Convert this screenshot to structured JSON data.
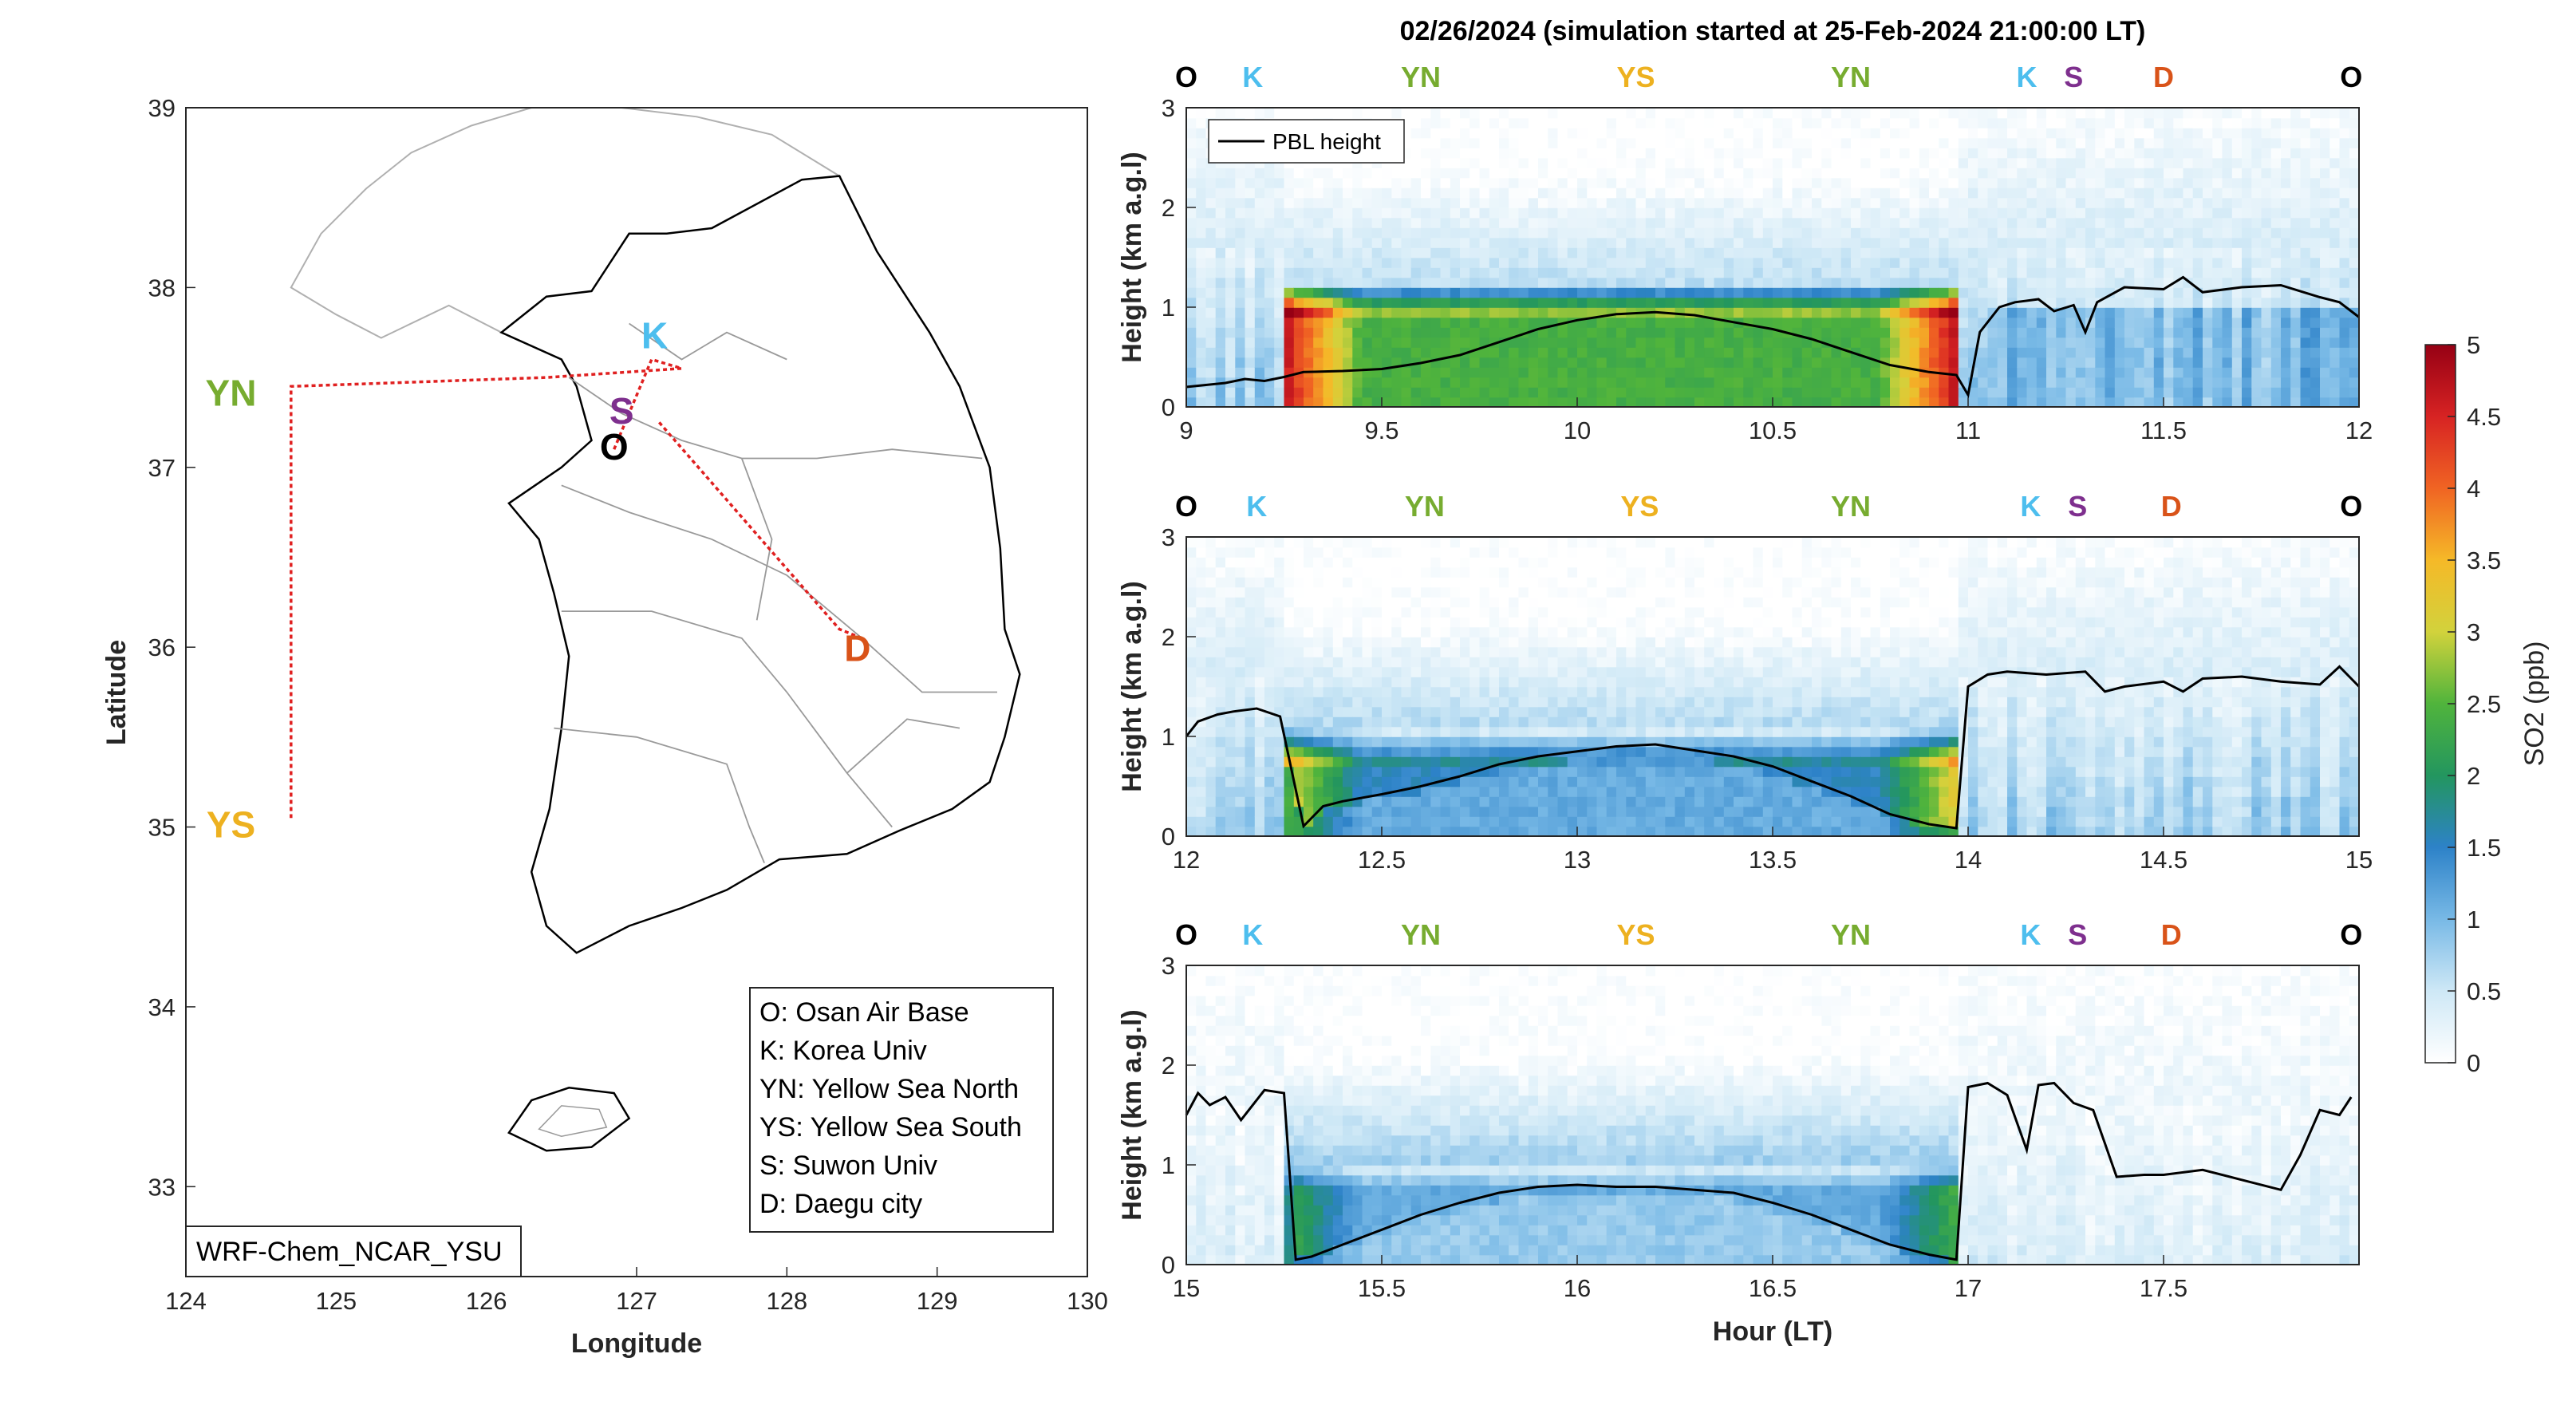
{
  "title": "02/26/2024 (simulation started at 25-Feb-2024 21:00:00 LT)",
  "map": {
    "xlabel": "Longitude",
    "ylabel": "Latitude",
    "xlim": [
      124,
      130
    ],
    "ylim": [
      32.5,
      39
    ],
    "xticks": [
      "124",
      "125",
      "126",
      "127",
      "128",
      "129",
      "130"
    ],
    "yticks": [
      "33",
      "34",
      "35",
      "36",
      "37",
      "38",
      "39"
    ],
    "model_label": "WRF-Chem_NCAR_YSU",
    "site_labels": [
      {
        "code": "YN",
        "color": "#77AC30",
        "lon": 124.3,
        "lat": 37.4
      },
      {
        "code": "YS",
        "color": "#EDB120",
        "lon": 124.3,
        "lat": 35.0
      },
      {
        "code": "K",
        "color": "#4DBEEE",
        "lon": 127.12,
        "lat": 37.72
      },
      {
        "code": "S",
        "color": "#7E2F8E",
        "lon": 126.9,
        "lat": 37.3
      },
      {
        "code": "O",
        "color": "#000000",
        "lon": 126.85,
        "lat": 37.1
      },
      {
        "code": "D",
        "color": "#D95319",
        "lon": 128.47,
        "lat": 35.98
      }
    ],
    "legend": [
      "O: Osan Air Base",
      "K: Korea Univ",
      "YN: Yellow Sea North",
      "YS: Yellow Sea South",
      "S: Suwon Univ",
      "D: Daegu city"
    ]
  },
  "chart_data": [
    {
      "type": "heatmap",
      "title": "02/26/2024 (simulation started at 25-Feb-2024 21:00:00 LT)",
      "ylabel": "Height (km a.g.l)",
      "xlabel": "",
      "xlim": [
        9,
        12
      ],
      "ylim": [
        0,
        3
      ],
      "xticks": [
        "9",
        "9.5",
        "10",
        "10.5",
        "11",
        "11.5",
        "12"
      ],
      "yticks": [
        "0",
        "1",
        "2",
        "3"
      ],
      "flight_segments": [
        {
          "label": "O",
          "color": "#000000",
          "hour": 9.0
        },
        {
          "label": "K",
          "color": "#4DBEEE",
          "hour": 9.17
        },
        {
          "label": "YN",
          "color": "#77AC30",
          "hour": 9.6
        },
        {
          "label": "YS",
          "color": "#EDB120",
          "hour": 10.15
        },
        {
          "label": "YN",
          "color": "#77AC30",
          "hour": 10.7
        },
        {
          "label": "K",
          "color": "#4DBEEE",
          "hour": 11.15
        },
        {
          "label": "S",
          "color": "#7E2F8E",
          "hour": 11.27
        },
        {
          "label": "D",
          "color": "#D95319",
          "hour": 11.5
        },
        {
          "label": "O",
          "color": "#000000",
          "hour": 11.98
        }
      ],
      "series": [
        {
          "name": "PBL height",
          "x": [
            9.0,
            9.05,
            9.1,
            9.15,
            9.2,
            9.25,
            9.3,
            9.4,
            9.5,
            9.6,
            9.7,
            9.8,
            9.9,
            10.0,
            10.1,
            10.2,
            10.3,
            10.4,
            10.5,
            10.6,
            10.7,
            10.8,
            10.9,
            10.97,
            11.0,
            11.03,
            11.08,
            11.12,
            11.18,
            11.22,
            11.27,
            11.3,
            11.33,
            11.4,
            11.5,
            11.55,
            11.6,
            11.7,
            11.8,
            11.9,
            11.95,
            12.0
          ],
          "y": [
            0.2,
            0.22,
            0.24,
            0.28,
            0.26,
            0.3,
            0.35,
            0.36,
            0.38,
            0.44,
            0.52,
            0.65,
            0.78,
            0.87,
            0.93,
            0.95,
            0.92,
            0.85,
            0.78,
            0.68,
            0.55,
            0.42,
            0.35,
            0.32,
            0.12,
            0.75,
            1.0,
            1.05,
            1.08,
            0.96,
            1.02,
            0.75,
            1.05,
            1.2,
            1.18,
            1.3,
            1.15,
            1.2,
            1.22,
            1.1,
            1.05,
            0.9
          ]
        }
      ],
      "pbl_legend": "PBL height"
    },
    {
      "type": "heatmap",
      "ylabel": "Height (km a.g.l)",
      "xlabel": "",
      "xlim": [
        12,
        15
      ],
      "ylim": [
        0,
        3
      ],
      "xticks": [
        "12",
        "12.5",
        "13",
        "13.5",
        "14",
        "14.5",
        "15"
      ],
      "yticks": [
        "0",
        "1",
        "2",
        "3"
      ],
      "flight_segments": [
        {
          "label": "O",
          "color": "#000000",
          "hour": 12.0
        },
        {
          "label": "K",
          "color": "#4DBEEE",
          "hour": 12.18
        },
        {
          "label": "YN",
          "color": "#77AC30",
          "hour": 12.61
        },
        {
          "label": "YS",
          "color": "#EDB120",
          "hour": 13.16
        },
        {
          "label": "YN",
          "color": "#77AC30",
          "hour": 13.7
        },
        {
          "label": "K",
          "color": "#4DBEEE",
          "hour": 14.16
        },
        {
          "label": "S",
          "color": "#7E2F8E",
          "hour": 14.28
        },
        {
          "label": "D",
          "color": "#D95319",
          "hour": 14.52
        },
        {
          "label": "O",
          "color": "#000000",
          "hour": 14.98
        }
      ],
      "series": [
        {
          "name": "PBL height",
          "x": [
            12.0,
            12.03,
            12.08,
            12.12,
            12.18,
            12.24,
            12.3,
            12.35,
            12.4,
            12.5,
            12.6,
            12.7,
            12.8,
            12.9,
            13.0,
            13.1,
            13.2,
            13.3,
            13.4,
            13.5,
            13.6,
            13.7,
            13.8,
            13.9,
            13.97,
            14.0,
            14.05,
            14.1,
            14.2,
            14.3,
            14.35,
            14.4,
            14.5,
            14.55,
            14.6,
            14.7,
            14.8,
            14.9,
            14.95,
            15.0
          ],
          "y": [
            1.0,
            1.15,
            1.22,
            1.25,
            1.28,
            1.2,
            0.1,
            0.3,
            0.35,
            0.42,
            0.5,
            0.6,
            0.72,
            0.8,
            0.85,
            0.9,
            0.92,
            0.86,
            0.8,
            0.7,
            0.55,
            0.4,
            0.22,
            0.12,
            0.08,
            1.5,
            1.62,
            1.65,
            1.62,
            1.65,
            1.45,
            1.5,
            1.55,
            1.45,
            1.58,
            1.6,
            1.55,
            1.52,
            1.7,
            1.5
          ]
        }
      ],
      "pbl_legend": ""
    },
    {
      "type": "heatmap",
      "ylabel": "Height (km a.g.l)",
      "xlabel": "Hour (LT)",
      "xlim": [
        15,
        18
      ],
      "ylim": [
        0,
        3
      ],
      "xticks": [
        "15",
        "15.5",
        "16",
        "16.5",
        "17",
        "17.5"
      ],
      "yticks": [
        "0",
        "1",
        "2",
        "3"
      ],
      "flight_segments": [
        {
          "label": "O",
          "color": "#000000",
          "hour": 15.0
        },
        {
          "label": "K",
          "color": "#4DBEEE",
          "hour": 15.17
        },
        {
          "label": "YN",
          "color": "#77AC30",
          "hour": 15.6
        },
        {
          "label": "YS",
          "color": "#EDB120",
          "hour": 16.15
        },
        {
          "label": "YN",
          "color": "#77AC30",
          "hour": 16.7
        },
        {
          "label": "K",
          "color": "#4DBEEE",
          "hour": 17.16
        },
        {
          "label": "S",
          "color": "#7E2F8E",
          "hour": 17.28
        },
        {
          "label": "D",
          "color": "#D95319",
          "hour": 17.52
        },
        {
          "label": "O",
          "color": "#000000",
          "hour": 17.98
        }
      ],
      "series": [
        {
          "name": "PBL height",
          "x": [
            15.0,
            15.03,
            15.06,
            15.1,
            15.14,
            15.2,
            15.25,
            15.28,
            15.32,
            15.4,
            15.5,
            15.6,
            15.7,
            15.8,
            15.9,
            16.0,
            16.1,
            16.2,
            16.3,
            16.4,
            16.5,
            16.6,
            16.7,
            16.8,
            16.9,
            16.97,
            17.0,
            17.05,
            17.1,
            17.15,
            17.18,
            17.22,
            17.27,
            17.32,
            17.38,
            17.45,
            17.5,
            17.6,
            17.7,
            17.8,
            17.85,
            17.9,
            17.95,
            17.98
          ],
          "y": [
            1.5,
            1.72,
            1.6,
            1.68,
            1.45,
            1.75,
            1.72,
            0.05,
            0.08,
            0.2,
            0.35,
            0.5,
            0.62,
            0.72,
            0.78,
            0.8,
            0.78,
            0.78,
            0.75,
            0.72,
            0.62,
            0.5,
            0.35,
            0.2,
            0.1,
            0.05,
            1.78,
            1.82,
            1.7,
            1.15,
            1.8,
            1.82,
            1.62,
            1.55,
            0.88,
            0.9,
            0.9,
            0.95,
            0.85,
            0.75,
            1.1,
            1.55,
            1.5,
            1.68
          ]
        }
      ],
      "pbl_legend": ""
    }
  ],
  "colorbar": {
    "label": "SO2 (ppb)",
    "min": 0,
    "max": 5,
    "ticks": [
      "0",
      "0.5",
      "1",
      "1.5",
      "2",
      "2.5",
      "3",
      "3.5",
      "4",
      "4.5",
      "5"
    ]
  }
}
